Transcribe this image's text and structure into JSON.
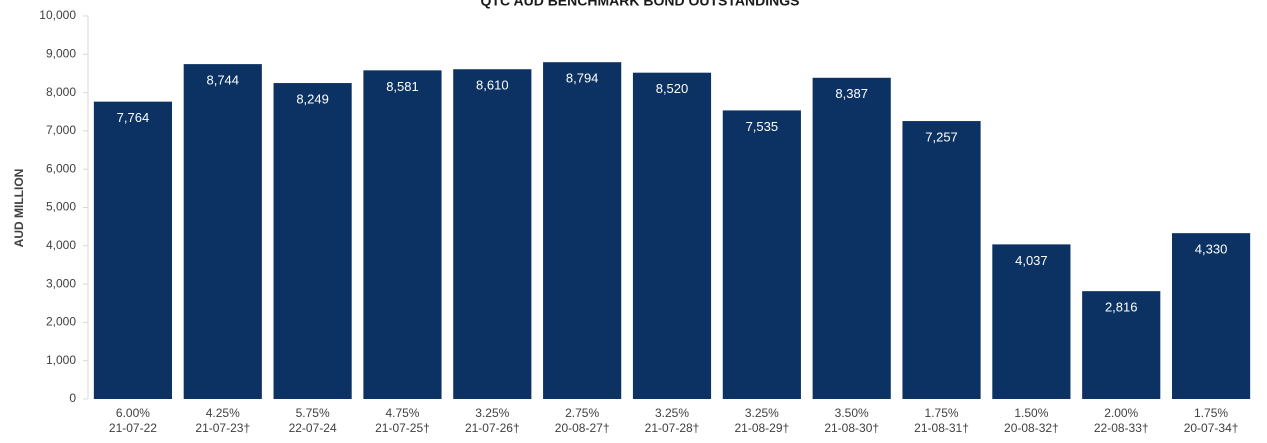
{
  "chart_data": {
    "type": "bar",
    "title": "QTC AUD BENCHMARK BOND OUTSTANDINGS",
    "y_label": "AUD MILLION",
    "categories": [
      [
        "6.00%",
        "21-07-22"
      ],
      [
        "4.25%",
        "21-07-23†"
      ],
      [
        "5.75%",
        "22-07-24"
      ],
      [
        "4.75%",
        "21-07-25†"
      ],
      [
        "3.25%",
        "21-07-26†"
      ],
      [
        "2.75%",
        "20-08-27†"
      ],
      [
        "3.25%",
        "21-07-28†"
      ],
      [
        "3.25%",
        "21-08-29†"
      ],
      [
        "3.50%",
        "21-08-30†"
      ],
      [
        "1.75%",
        "21-08-31†"
      ],
      [
        "1.50%",
        "20-08-32†"
      ],
      [
        "2.00%",
        "22-08-33†"
      ],
      [
        "1.75%",
        "20-07-34†"
      ]
    ],
    "values": [
      7764,
      8744,
      8249,
      8581,
      8610,
      8794,
      8520,
      7535,
      8387,
      7257,
      4037,
      2816,
      4330
    ],
    "value_labels": [
      "7,764",
      "8,744",
      "8,249",
      "8,581",
      "8,610",
      "8,794",
      "8,520",
      "7,535",
      "8,387",
      "7,257",
      "4,037",
      "2,816",
      "4,330"
    ],
    "color": "#0c3263",
    "ylim": [
      0,
      10000
    ],
    "yticks": [
      0,
      {
        "value": 1000,
        "label": "1,000"
      },
      {
        "value": 2000,
        "label": "2,000"
      },
      {
        "value": 3000,
        "label": "3,000"
      },
      {
        "value": 4000,
        "label": "4,000"
      },
      {
        "value": 5000,
        "label": "5,000"
      },
      {
        "value": 6000,
        "label": "6,000"
      },
      {
        "value": 7000,
        "label": "7,000"
      },
      {
        "value": 8000,
        "label": "8,000"
      },
      {
        "value": 9000,
        "label": "9,000"
      },
      {
        "value": 10000,
        "label": "10,000"
      }
    ],
    "grid": false
  }
}
